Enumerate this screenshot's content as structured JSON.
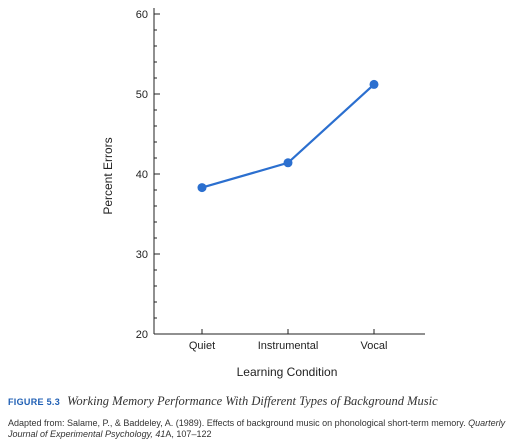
{
  "chart_data": {
    "type": "line",
    "categories": [
      "Quiet",
      "Instrumental",
      "Vocal"
    ],
    "series": [
      {
        "values": [
          38.3,
          41.4,
          51.2
        ]
      }
    ],
    "xlabel": "Learning Condition",
    "ylabel": "Percent Errors",
    "ylim": [
      20,
      60
    ],
    "yticks": [
      20,
      30,
      40,
      50,
      60
    ],
    "minor_ticks": true,
    "grid": false,
    "line_color": "#2b6fcf"
  },
  "caption": {
    "figure_number": "FIGURE 5.3",
    "title": "Working Memory Performance With Different Types of Background Music"
  },
  "source": {
    "prefix": "Adapted from: Salame, P., & Baddeley, A. (1989). Effects of background music on phonological short-term memory. ",
    "journal": "Quarterly Journal of Experimental Psychology, 41",
    "suffix": "A, 107–122"
  }
}
